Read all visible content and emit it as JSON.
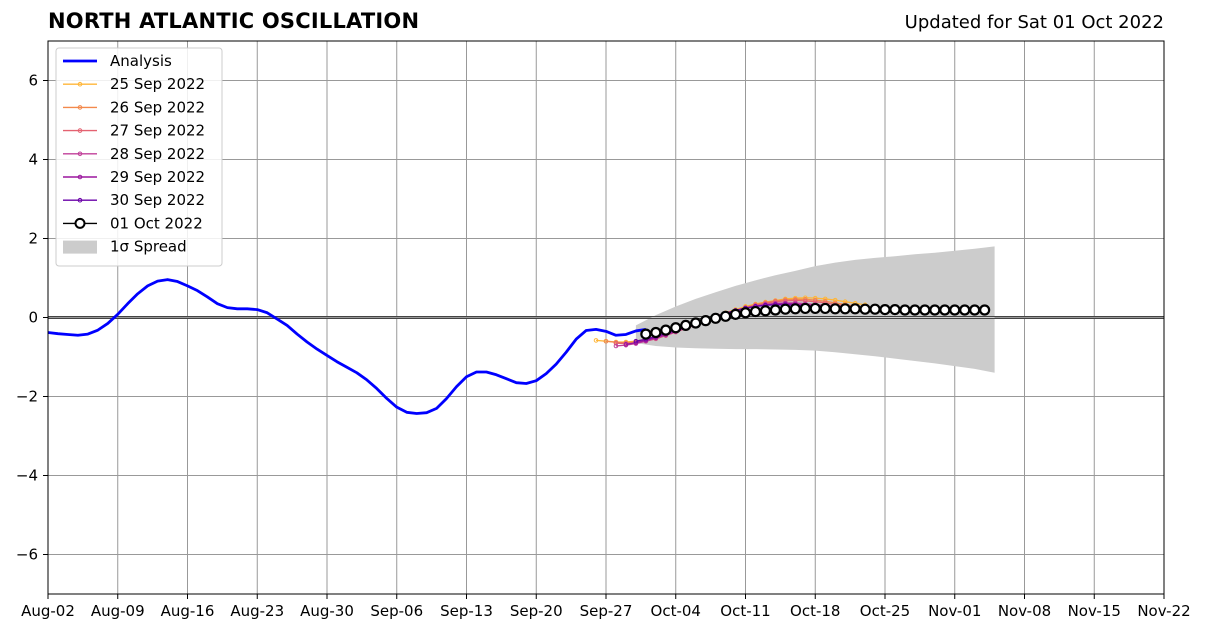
{
  "title": "NORTH ATLANTIC OSCILLATION",
  "subtitle": "Updated for Sat 01 Oct 2022",
  "chart_data": {
    "type": "line",
    "xlim": [
      "2022-08-02",
      "2022-11-22"
    ],
    "ylim": [
      -7,
      7
    ],
    "grid": true,
    "legend_position": "top-left",
    "x_ticks": [
      "Aug-02",
      "Aug-09",
      "Aug-16",
      "Aug-23",
      "Aug-30",
      "Sep-06",
      "Sep-13",
      "Sep-20",
      "Sep-27",
      "Oct-04",
      "Oct-11",
      "Oct-18",
      "Oct-25",
      "Nov-01",
      "Nov-08",
      "Nov-15",
      "Nov-22"
    ],
    "y_ticks": [
      {
        "value": -6,
        "label": "−6"
      },
      {
        "value": -4,
        "label": "−4"
      },
      {
        "value": -2,
        "label": "−2"
      },
      {
        "value": 0,
        "label": "0"
      },
      {
        "value": 2,
        "label": "2"
      },
      {
        "value": 4,
        "label": "4"
      },
      {
        "value": 6,
        "label": "6"
      }
    ],
    "analysis": {
      "name": "Analysis",
      "color": "#0000ff",
      "x": [
        "2022-08-02",
        "2022-08-03",
        "2022-08-04",
        "2022-08-05",
        "2022-08-06",
        "2022-08-07",
        "2022-08-08",
        "2022-08-09",
        "2022-08-10",
        "2022-08-11",
        "2022-08-12",
        "2022-08-13",
        "2022-08-14",
        "2022-08-15",
        "2022-08-16",
        "2022-08-17",
        "2022-08-18",
        "2022-08-19",
        "2022-08-20",
        "2022-08-21",
        "2022-08-22",
        "2022-08-23",
        "2022-08-24",
        "2022-08-25",
        "2022-08-26",
        "2022-08-27",
        "2022-08-28",
        "2022-08-29",
        "2022-08-30",
        "2022-08-31",
        "2022-09-01",
        "2022-09-02",
        "2022-09-03",
        "2022-09-04",
        "2022-09-05",
        "2022-09-06",
        "2022-09-07",
        "2022-09-08",
        "2022-09-09",
        "2022-09-10",
        "2022-09-11",
        "2022-09-12",
        "2022-09-13",
        "2022-09-14",
        "2022-09-15",
        "2022-09-16",
        "2022-09-17",
        "2022-09-18",
        "2022-09-19",
        "2022-09-20",
        "2022-09-21",
        "2022-09-22",
        "2022-09-23",
        "2022-09-24",
        "2022-09-25",
        "2022-09-26",
        "2022-09-27",
        "2022-09-28",
        "2022-09-29",
        "2022-09-30",
        "2022-10-01"
      ],
      "y": [
        -0.38,
        -0.41,
        -0.43,
        -0.45,
        -0.42,
        -0.32,
        -0.15,
        0.08,
        0.35,
        0.6,
        0.8,
        0.92,
        0.96,
        0.91,
        0.8,
        0.68,
        0.52,
        0.35,
        0.25,
        0.22,
        0.22,
        0.2,
        0.12,
        -0.04,
        -0.2,
        -0.42,
        -0.62,
        -0.8,
        -0.96,
        -1.12,
        -1.26,
        -1.4,
        -1.58,
        -1.8,
        -2.05,
        -2.27,
        -2.4,
        -2.43,
        -2.41,
        -2.3,
        -2.05,
        -1.75,
        -1.5,
        -1.38,
        -1.38,
        -1.45,
        -1.55,
        -1.65,
        -1.67,
        -1.6,
        -1.42,
        -1.18,
        -0.88,
        -0.55,
        -0.33,
        -0.3,
        -0.35,
        -0.45,
        -0.43,
        -0.34,
        -0.3
      ]
    },
    "spread": {
      "name": "1σ Spread",
      "color": "#cccccc",
      "x": [
        "2022-09-30",
        "2022-10-02",
        "2022-10-04",
        "2022-10-06",
        "2022-10-08",
        "2022-10-10",
        "2022-10-12",
        "2022-10-14",
        "2022-10-16",
        "2022-10-18",
        "2022-10-20",
        "2022-10-22",
        "2022-10-24",
        "2022-10-26",
        "2022-10-28",
        "2022-10-30",
        "2022-11-01",
        "2022-11-03",
        "2022-11-05"
      ],
      "upper": [
        -0.2,
        0.06,
        0.28,
        0.47,
        0.64,
        0.8,
        0.94,
        1.07,
        1.18,
        1.3,
        1.39,
        1.46,
        1.51,
        1.55,
        1.6,
        1.64,
        1.69,
        1.74,
        1.8
      ],
      "lower": [
        -0.65,
        -0.72,
        -0.76,
        -0.78,
        -0.79,
        -0.8,
        -0.8,
        -0.81,
        -0.82,
        -0.84,
        -0.88,
        -0.93,
        -0.98,
        -1.04,
        -1.1,
        -1.16,
        -1.23,
        -1.3,
        -1.4
      ]
    },
    "forecasts": [
      {
        "name": "25 Sep 2022",
        "color": "#ffb638",
        "x0": "2022-09-26",
        "y": [
          -0.58,
          -0.6,
          -0.62,
          -0.62,
          -0.6,
          -0.55,
          -0.48,
          -0.4,
          -0.33,
          -0.25,
          -0.16,
          -0.07,
          0.03,
          0.12,
          0.2,
          0.28,
          0.34,
          0.39,
          0.43,
          0.47,
          0.49,
          0.5,
          0.49,
          0.47,
          0.44,
          0.4,
          0.36,
          0.32
        ]
      },
      {
        "name": "26 Sep 2022",
        "color": "#f3894c",
        "x0": "2022-09-27",
        "y": [
          -0.6,
          -0.63,
          -0.64,
          -0.62,
          -0.58,
          -0.52,
          -0.44,
          -0.35,
          -0.26,
          -0.17,
          -0.08,
          0.01,
          0.1,
          0.18,
          0.26,
          0.33,
          0.38,
          0.42,
          0.45,
          0.46,
          0.46,
          0.44,
          0.41,
          0.37,
          0.33,
          0.29
        ]
      },
      {
        "name": "27 Sep 2022",
        "color": "#e46271",
        "x0": "2022-09-28",
        "y": [
          -0.65,
          -0.66,
          -0.64,
          -0.6,
          -0.54,
          -0.46,
          -0.37,
          -0.28,
          -0.19,
          -0.1,
          -0.01,
          0.08,
          0.16,
          0.24,
          0.31,
          0.36,
          0.4,
          0.42,
          0.43,
          0.42,
          0.4,
          0.37,
          0.33,
          0.3,
          0.27
        ]
      },
      {
        "name": "28 Sep 2022",
        "color": "#c13f99",
        "x0": "2022-09-28",
        "y": [
          -0.72,
          -0.7,
          -0.66,
          -0.6,
          -0.53,
          -0.45,
          -0.36,
          -0.27,
          -0.18,
          -0.09,
          0.0,
          0.08,
          0.16,
          0.23,
          0.29,
          0.33,
          0.36,
          0.37,
          0.37,
          0.35,
          0.33,
          0.31,
          0.29,
          0.27,
          0.25
        ]
      },
      {
        "name": "29 Sep 2022",
        "color": "#9b179e",
        "x0": "2022-09-29",
        "y": [
          -0.68,
          -0.64,
          -0.58,
          -0.51,
          -0.43,
          -0.35,
          -0.26,
          -0.17,
          -0.08,
          0.01,
          0.09,
          0.16,
          0.23,
          0.28,
          0.32,
          0.34,
          0.35,
          0.34,
          0.32,
          0.3,
          0.28,
          0.26,
          0.25
        ]
      },
      {
        "name": "30 Sep 2022",
        "color": "#6a00a8",
        "x0": "2022-09-30",
        "y": [
          -0.6,
          -0.55,
          -0.48,
          -0.4,
          -0.32,
          -0.24,
          -0.15,
          -0.06,
          0.03,
          0.11,
          0.18,
          0.24,
          0.28,
          0.31,
          0.32,
          0.32,
          0.31,
          0.29,
          0.27,
          0.25,
          0.24,
          0.23
        ]
      },
      {
        "name": "01 Oct 2022",
        "color": "#000000",
        "x0": "2022-10-01",
        "y": [
          -0.42,
          -0.38,
          -0.32,
          -0.26,
          -0.2,
          -0.14,
          -0.08,
          -0.02,
          0.03,
          0.08,
          0.12,
          0.15,
          0.17,
          0.19,
          0.21,
          0.22,
          0.23,
          0.23,
          0.23,
          0.22,
          0.22,
          0.22,
          0.21,
          0.21,
          0.2,
          0.2,
          0.19,
          0.19,
          0.19,
          0.19,
          0.19,
          0.19,
          0.19,
          0.19,
          0.19
        ]
      }
    ]
  }
}
